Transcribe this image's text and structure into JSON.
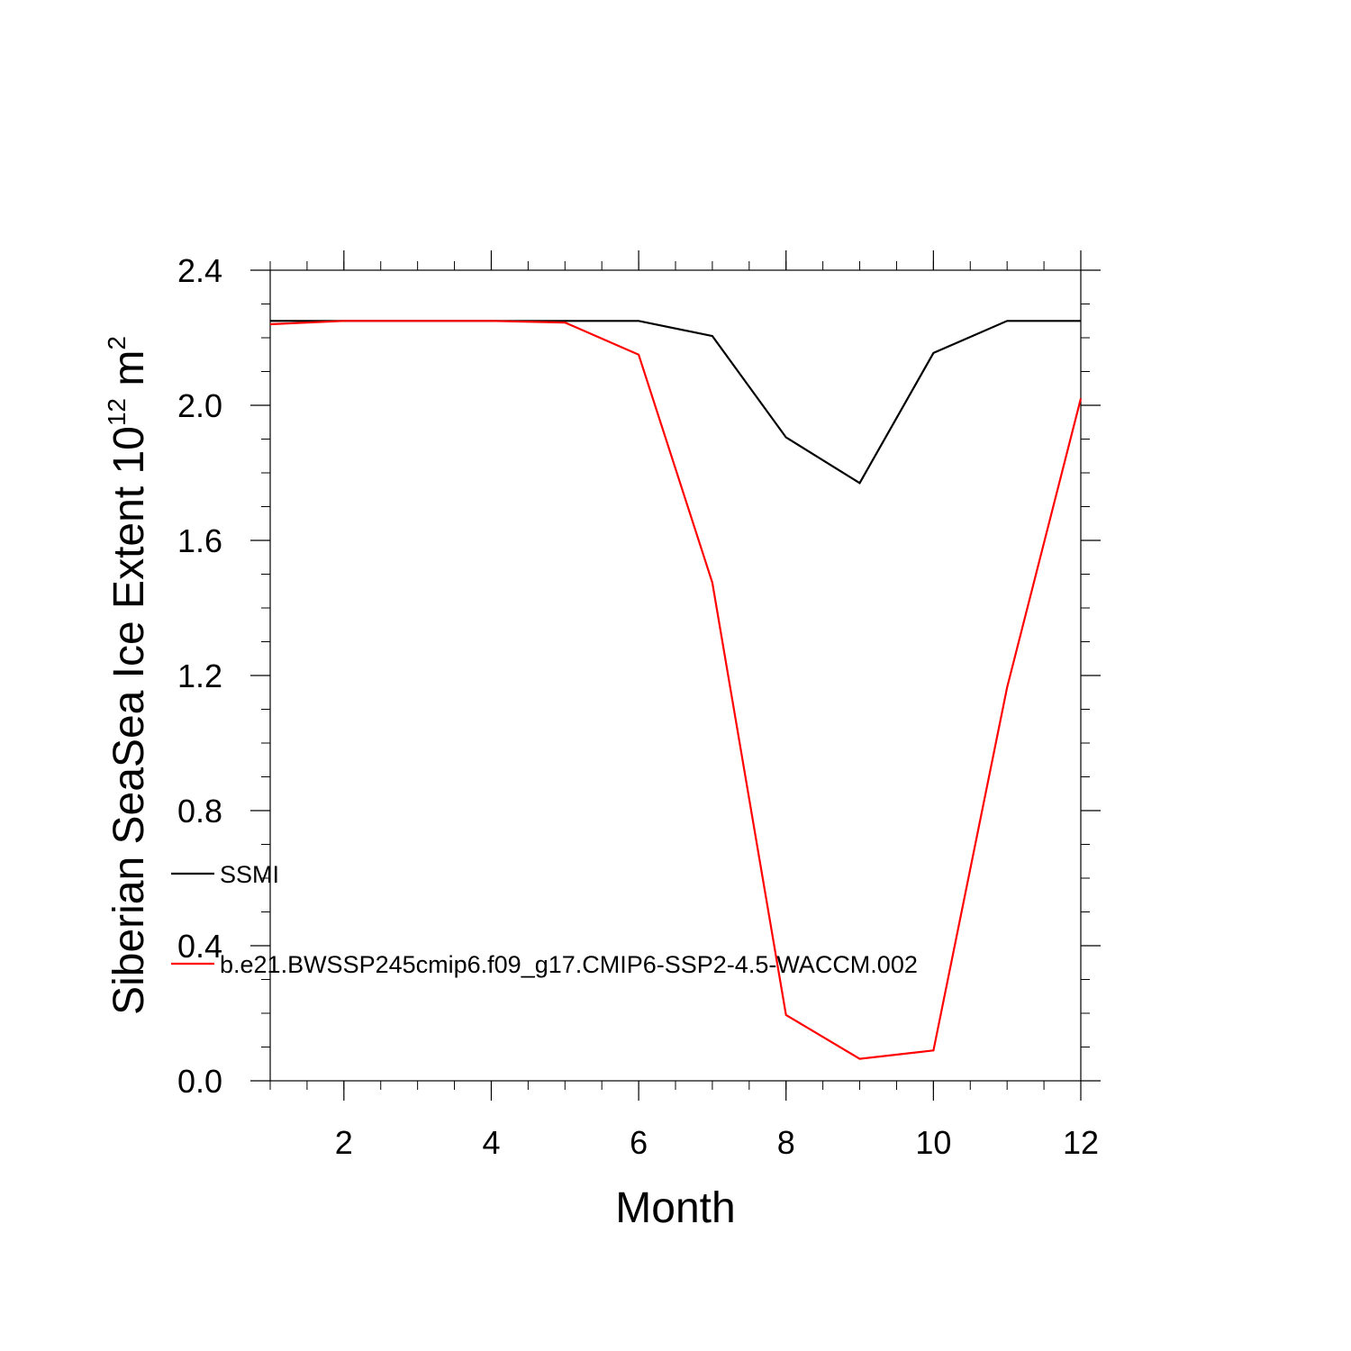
{
  "chart_data": {
    "type": "line",
    "title": "",
    "xlabel": "Month",
    "ylabel_main": "Siberian SeaSea Ice Extent 10",
    "ylabel_exponent": "12",
    "ylabel_unit": " m",
    "ylabel_unit_exponent": "2",
    "xlim": [
      1,
      12
    ],
    "ylim": [
      0.0,
      2.4
    ],
    "xticks": [
      2,
      4,
      6,
      8,
      10,
      12
    ],
    "xtick_labels": [
      "2",
      "4",
      "6",
      "8",
      "10",
      "12"
    ],
    "yticks": [
      0.0,
      0.4,
      0.8,
      1.2,
      1.6,
      2.0,
      2.4
    ],
    "ytick_labels": [
      "0.0",
      "0.4",
      "0.8",
      "1.2",
      "1.6",
      "2.0",
      "2.4"
    ],
    "grid": false,
    "legend_placement": "left",
    "x": [
      1,
      2,
      3,
      4,
      5,
      6,
      7,
      8,
      9,
      10,
      11,
      12
    ],
    "series": [
      {
        "name": "SSMI",
        "color": "#000000",
        "values": [
          2.25,
          2.25,
          2.25,
          2.25,
          2.25,
          2.25,
          2.205,
          1.905,
          1.77,
          2.155,
          2.25,
          2.25
        ]
      },
      {
        "name": "b.e21.BWSSP245cmip6.f09_g17.CMIP6-SSP2-4.5-WACCM.002",
        "color": "#ff0000",
        "values": [
          2.24,
          2.25,
          2.25,
          2.25,
          2.245,
          2.15,
          1.475,
          0.195,
          0.065,
          0.09,
          1.165,
          2.02
        ]
      }
    ]
  }
}
